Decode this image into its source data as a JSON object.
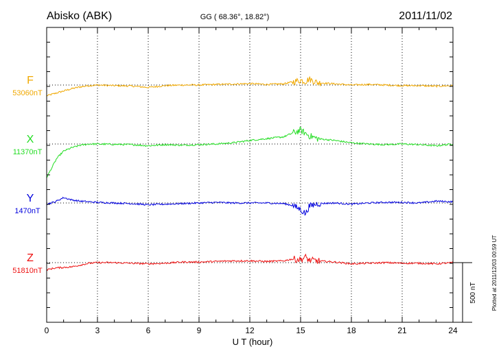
{
  "header": {
    "station": "Abisko (ABK)",
    "coords": "GG ( 68.36°,  18.82°)",
    "date": "2011/11/02"
  },
  "footer_note": "Plotted at 2011/12/03 00:59 UT",
  "chart_data": {
    "type": "line",
    "title": "Abisko (ABK)",
    "xlabel": "U T (hour)",
    "xlim": [
      0,
      24
    ],
    "xticks": [
      "0",
      "3",
      "6",
      "9",
      "12",
      "15",
      "18",
      "21",
      "24"
    ],
    "grid": true,
    "scale_bar_label": "500 nT",
    "series": [
      {
        "name": "F",
        "baseline_label": "53060nT",
        "color": "#f0a800",
        "x": [
          0,
          0.5,
          1,
          1.5,
          2,
          2.5,
          3,
          4,
          5,
          6,
          7,
          8,
          9,
          10,
          11,
          12,
          13,
          14,
          14.5,
          15,
          15.3,
          15.5,
          16,
          17,
          18,
          19,
          20,
          21,
          22,
          23,
          24
        ],
        "y": [
          -90,
          -70,
          -50,
          -30,
          -15,
          -5,
          0,
          -5,
          -8,
          -20,
          -5,
          0,
          0,
          5,
          8,
          12,
          5,
          10,
          25,
          40,
          30,
          50,
          20,
          10,
          0,
          5,
          0,
          -5,
          -5,
          -10,
          -5
        ]
      },
      {
        "name": "X",
        "baseline_label": "11370nT",
        "color": "#22dd22",
        "x": [
          0,
          0.3,
          0.6,
          1,
          1.5,
          2,
          2.5,
          3,
          4,
          5,
          6,
          7,
          8,
          9,
          10,
          11,
          12,
          13,
          14,
          14.5,
          15,
          15.5,
          16,
          17,
          18,
          19,
          20,
          21,
          22,
          23,
          24
        ],
        "y": [
          -280,
          -200,
          -120,
          -60,
          -30,
          -10,
          0,
          0,
          -3,
          -5,
          -15,
          -5,
          -10,
          -5,
          0,
          10,
          30,
          45,
          60,
          90,
          115,
          70,
          45,
          30,
          10,
          0,
          -5,
          0,
          -5,
          -15,
          0
        ]
      },
      {
        "name": "Y",
        "baseline_label": "1470nT",
        "color": "#0000dd",
        "x": [
          0,
          0.5,
          1,
          1.5,
          2,
          3,
          4,
          5,
          6,
          7,
          8,
          9,
          10,
          11,
          12,
          13,
          14,
          14.5,
          15,
          15.3,
          15.5,
          16,
          17,
          18,
          19,
          20,
          21,
          22,
          23,
          24
        ],
        "y": [
          -10,
          10,
          45,
          25,
          15,
          5,
          0,
          -5,
          -15,
          -10,
          -5,
          0,
          5,
          0,
          0,
          0,
          -5,
          -20,
          -55,
          -90,
          -30,
          -5,
          0,
          -10,
          0,
          5,
          5,
          0,
          15,
          10
        ]
      },
      {
        "name": "Z",
        "baseline_label": "51810nT",
        "color": "#ee1111",
        "x": [
          0,
          0.5,
          1,
          1.5,
          2,
          2.5,
          3,
          4,
          5,
          6,
          7,
          8,
          9,
          10,
          11,
          12,
          13,
          14,
          14.5,
          15,
          15.3,
          15.5,
          16,
          17,
          18,
          19,
          20,
          21,
          22,
          23,
          24
        ],
        "y": [
          -60,
          -45,
          -40,
          -35,
          -20,
          -5,
          0,
          0,
          -5,
          -10,
          -5,
          5,
          5,
          10,
          15,
          15,
          10,
          15,
          30,
          25,
          45,
          20,
          15,
          5,
          -10,
          -5,
          0,
          -5,
          -5,
          -10,
          0
        ]
      }
    ]
  }
}
